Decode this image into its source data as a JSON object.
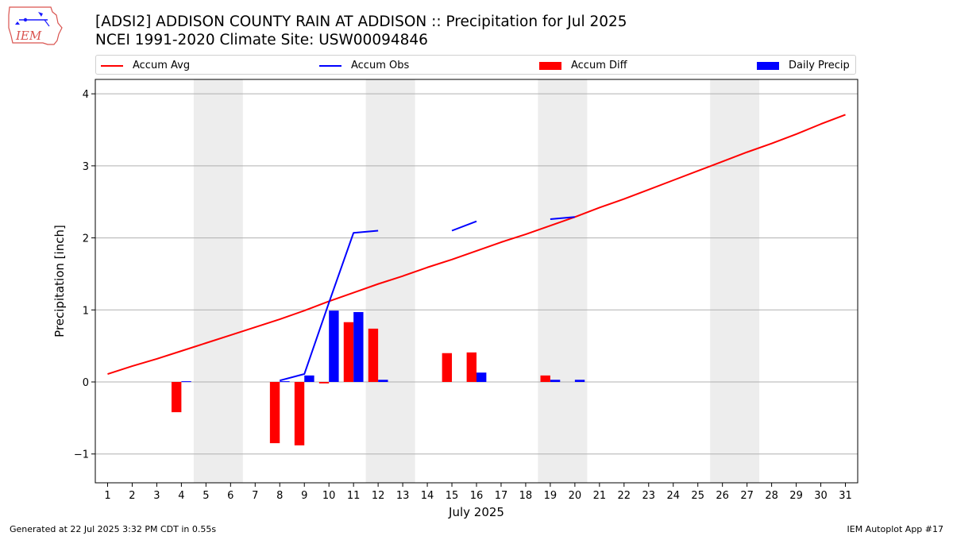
{
  "header": {
    "logo_text": "IEM",
    "title_line1": "[ADSI2] ADDISON COUNTY RAIN AT ADDISON :: Precipitation for Jul 2025",
    "title_line2": "NCEI 1991-2020 Climate Site: USW00094846"
  },
  "legend": {
    "accum_avg": "Accum Avg",
    "accum_obs": "Accum Obs",
    "accum_diff": "Accum Diff",
    "daily_precip": "Daily Precip"
  },
  "colors": {
    "accum_avg": "#ff0000",
    "accum_obs": "#0000ff",
    "accum_diff": "#ff0000",
    "daily_precip": "#0000ff",
    "weekend_shade": "#ededed",
    "grid": "#b0b0b0"
  },
  "footer": {
    "generated": "Generated at 22 Jul 2025 3:32 PM CDT in 0.55s",
    "app": "IEM Autoplot App #17"
  },
  "chart_data": {
    "type": "bar",
    "xlabel": "July 2025",
    "ylabel": "Precipitation [inch]",
    "xlim": [
      0.5,
      31.5
    ],
    "ylim": [
      -1.4,
      4.2
    ],
    "x_ticks": [
      1,
      2,
      3,
      4,
      5,
      6,
      7,
      8,
      9,
      10,
      11,
      12,
      13,
      14,
      15,
      16,
      17,
      18,
      19,
      20,
      21,
      22,
      23,
      24,
      25,
      26,
      27,
      28,
      29,
      30,
      31
    ],
    "y_ticks": [
      -1,
      0,
      1,
      2,
      3,
      4
    ],
    "y_tick_labels": [
      "−1",
      "0",
      "1",
      "2",
      "3",
      "4"
    ],
    "grid": true,
    "legend_position": "top",
    "weekend_shading": [
      [
        4.5,
        6.5
      ],
      [
        11.5,
        13.5
      ],
      [
        18.5,
        20.5
      ],
      [
        25.5,
        27.5
      ]
    ],
    "series": [
      {
        "name": "Accum Avg",
        "type": "line",
        "x": [
          1,
          2,
          3,
          4,
          5,
          6,
          7,
          8,
          9,
          10,
          11,
          12,
          13,
          14,
          15,
          16,
          17,
          18,
          19,
          20,
          21,
          22,
          23,
          24,
          25,
          26,
          27,
          28,
          29,
          30,
          31
        ],
        "values": [
          0.11,
          0.22,
          0.32,
          0.43,
          0.54,
          0.65,
          0.76,
          0.87,
          0.99,
          1.12,
          1.24,
          1.36,
          1.47,
          1.59,
          1.7,
          1.82,
          1.94,
          2.05,
          2.17,
          2.29,
          2.42,
          2.54,
          2.67,
          2.8,
          2.93,
          3.06,
          3.19,
          3.31,
          3.44,
          3.58,
          3.71
        ]
      },
      {
        "name": "Accum Obs",
        "type": "line",
        "x": [
          1,
          2,
          3,
          4,
          5,
          6,
          7,
          8,
          9,
          10,
          11,
          12,
          13,
          14,
          15,
          16,
          17,
          18,
          19,
          20,
          21,
          22,
          23,
          24,
          25,
          26,
          27,
          28,
          29,
          30,
          31
        ],
        "values": [
          null,
          null,
          null,
          0.01,
          null,
          null,
          null,
          0.02,
          0.11,
          1.1,
          2.07,
          2.1,
          null,
          null,
          2.1,
          2.23,
          null,
          null,
          2.26,
          2.29,
          null,
          null,
          null,
          null,
          null,
          null,
          null,
          null,
          null,
          null,
          null
        ]
      },
      {
        "name": "Accum Diff",
        "type": "bar",
        "x": [
          4,
          8,
          9,
          10,
          11,
          12,
          15,
          16,
          19
        ],
        "values": [
          -0.42,
          -0.85,
          -0.88,
          -0.02,
          0.83,
          0.74,
          0.4,
          0.41,
          0.09
        ]
      },
      {
        "name": "Daily Precip",
        "type": "bar",
        "x": [
          4,
          8,
          9,
          10,
          11,
          12,
          16,
          19,
          20
        ],
        "values": [
          0.01,
          0.01,
          0.09,
          0.99,
          0.97,
          0.03,
          0.13,
          0.03,
          0.03
        ]
      }
    ]
  }
}
